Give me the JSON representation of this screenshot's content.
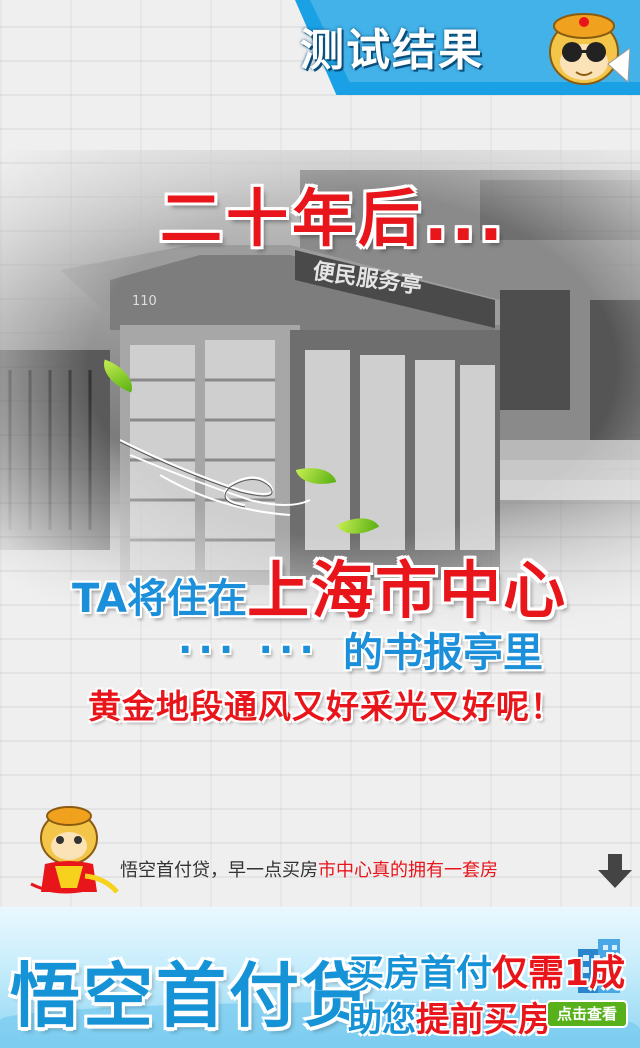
{
  "header": {
    "title": "测试结果",
    "accent_color": "#1aa1e5",
    "icon": "monkey-sunglasses-icon"
  },
  "photo": {
    "sign": "便民服务亭",
    "booth_number": "110"
  },
  "result": {
    "headline": "二十年后...",
    "line1_lead": "TA将住在",
    "line1_city": "上海市中心",
    "dots": "... ...",
    "line2": "的书报亭里",
    "line3": "黄金地段通风又好采光又好呢！"
  },
  "promo": {
    "text_normal": "悟空首付贷，早一点买房",
    "text_highlight": "市中心真的拥有一套房",
    "arrow_icon": "down-arrow-icon"
  },
  "banner": {
    "brand": "悟空首付贷",
    "line1_a": "买房首付",
    "line1_b": "仅需1成",
    "line2_a": "助您",
    "line2_b": "提前买房",
    "cta": "点击查看"
  },
  "colors": {
    "red": "#e8151b",
    "blue": "#1b8fd9",
    "green": "#58b11a"
  }
}
